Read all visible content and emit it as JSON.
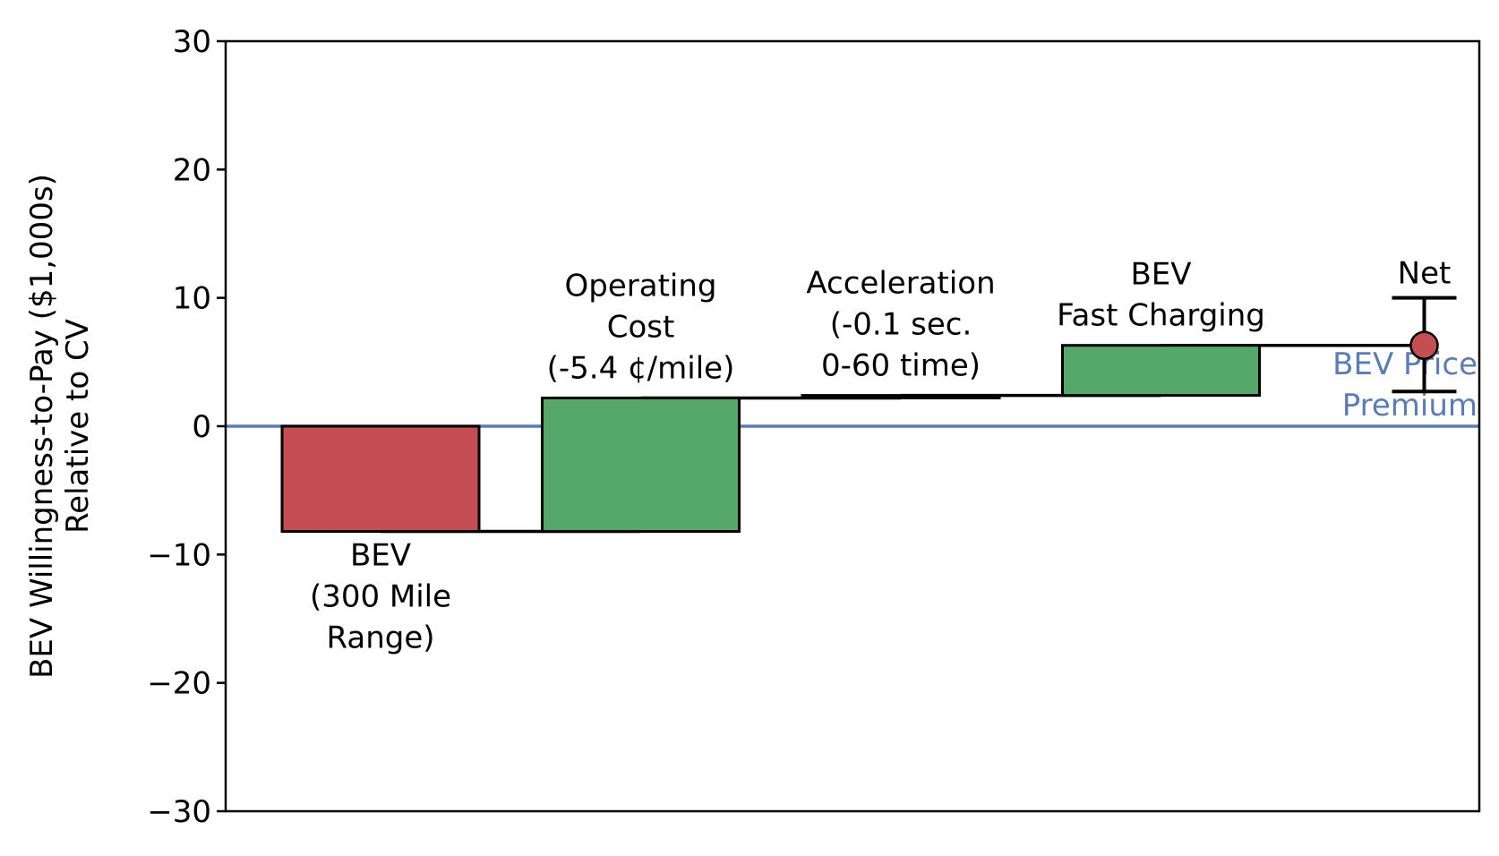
{
  "chart_data": {
    "type": "waterfall",
    "ylabel_lines": [
      "BEV Willingness-to-Pay ($1,000s)",
      "Relative to CV"
    ],
    "ylim": [
      -30,
      30
    ],
    "yticks": [
      30,
      20,
      10,
      0,
      -10,
      -20,
      -30
    ],
    "ytick_labels": [
      "30",
      "20",
      "10",
      "0",
      "−10",
      "−20",
      "−30"
    ],
    "grid": false,
    "steps": [
      {
        "name": "BEV (300 Mile Range)",
        "label_lines": [
          "BEV",
          "(300 Mile",
          "Range)"
        ],
        "start": 0,
        "end": -8.2,
        "color": "#c44e52",
        "label_position": "below"
      },
      {
        "name": "Operating Cost",
        "label_lines": [
          "Operating",
          "Cost",
          "(-5.4 ¢/mile)"
        ],
        "start": -8.2,
        "end": 2.2,
        "color": "#55a868",
        "label_position": "above"
      },
      {
        "name": "Acceleration",
        "label_lines": [
          "Acceleration",
          "(-0.1 sec.",
          "0-60 time)"
        ],
        "start": 2.2,
        "end": 2.4,
        "color": "#55a868",
        "label_position": "above"
      },
      {
        "name": "BEV Fast Charging",
        "label_lines": [
          "BEV",
          "Fast Charging"
        ],
        "start": 2.4,
        "end": 6.3,
        "color": "#55a868",
        "label_position": "above"
      }
    ],
    "net": {
      "label": "Net",
      "value": 6.3,
      "error_low": 2.7,
      "error_high": 10.0,
      "marker_color": "#c44e52"
    },
    "reference_line": {
      "value": 0,
      "color": "#5a7db5",
      "label_lines": [
        "BEV Price",
        "Premium"
      ]
    }
  }
}
